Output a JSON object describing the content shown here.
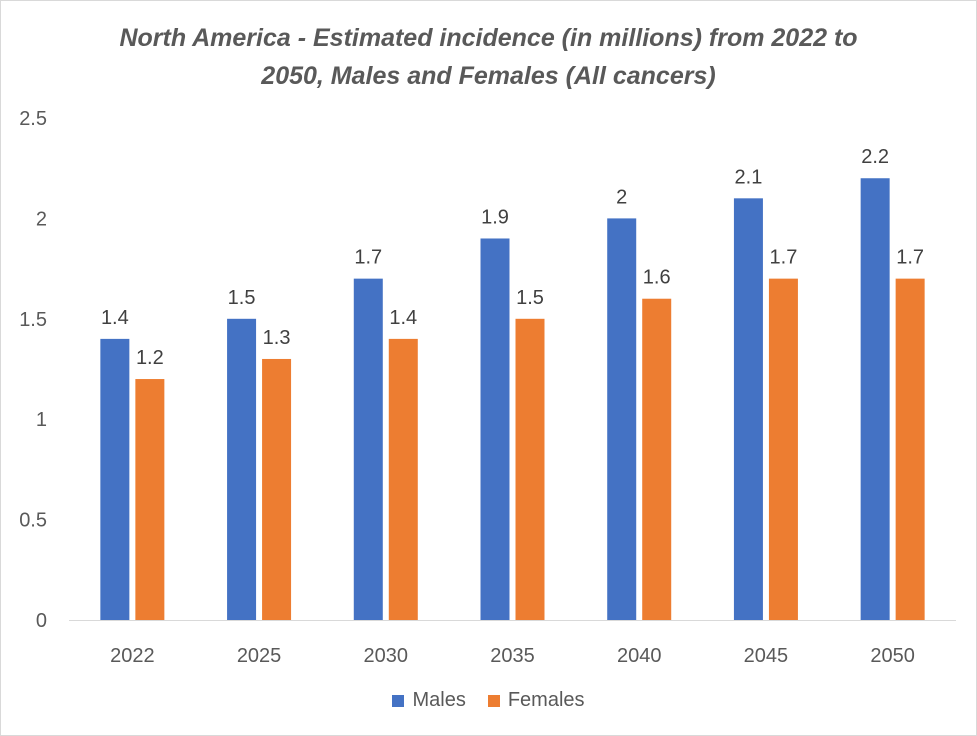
{
  "chart_data": {
    "type": "bar",
    "title_lines": [
      "North America - Estimated incidence (in millions) from 2022 to",
      "2050, Males and Females (All cancers)"
    ],
    "categories": [
      "2022",
      "2025",
      "2030",
      "2035",
      "2040",
      "2045",
      "2050"
    ],
    "series": [
      {
        "name": "Males",
        "color": "#4472C4",
        "values": [
          1.4,
          1.5,
          1.7,
          1.9,
          2,
          2.1,
          2.2
        ],
        "labels": [
          "1.4",
          "1.5",
          "1.7",
          "1.9",
          "2",
          "2.1",
          "2.2"
        ]
      },
      {
        "name": "Females",
        "color": "#ED7D31",
        "values": [
          1.2,
          1.3,
          1.4,
          1.5,
          1.6,
          1.7,
          1.7
        ],
        "labels": [
          "1.2",
          "1.3",
          "1.4",
          "1.5",
          "1.6",
          "1.7",
          "1.7"
        ]
      }
    ],
    "ylim": [
      0,
      2.5
    ],
    "yticks": [
      0,
      0.5,
      1,
      1.5,
      2,
      2.5
    ],
    "ytick_labels": [
      "0",
      "0.5",
      "1",
      "1.5",
      "2",
      "2.5"
    ],
    "grid": false,
    "legend_position": "bottom"
  }
}
